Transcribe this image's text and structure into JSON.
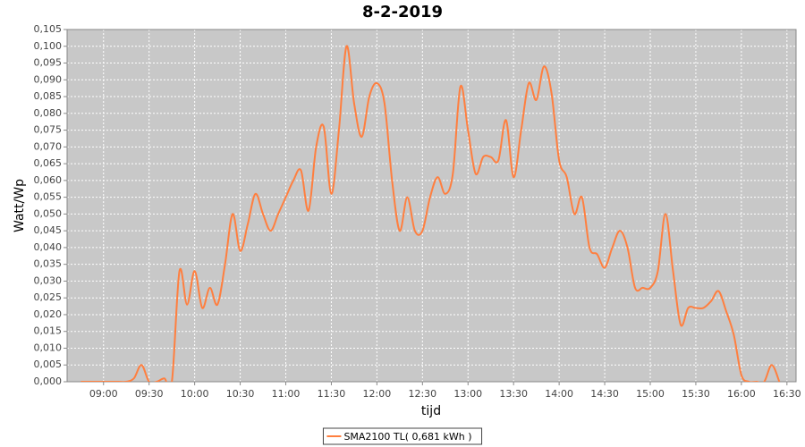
{
  "chart_data": {
    "type": "line",
    "title": "8-2-2019",
    "xlabel": "tijd",
    "ylabel": "Watt/Wp",
    "x": [
      "08:45",
      "08:50",
      "08:55",
      "09:00",
      "09:05",
      "09:10",
      "09:15",
      "09:20",
      "09:25",
      "09:30",
      "09:35",
      "09:40",
      "09:45",
      "09:50",
      "09:55",
      "10:00",
      "10:05",
      "10:10",
      "10:15",
      "10:20",
      "10:25",
      "10:30",
      "10:35",
      "10:40",
      "10:45",
      "10:50",
      "10:55",
      "11:00",
      "11:05",
      "11:10",
      "11:15",
      "11:20",
      "11:25",
      "11:30",
      "11:35",
      "11:40",
      "11:45",
      "11:50",
      "11:55",
      "12:00",
      "12:05",
      "12:10",
      "12:15",
      "12:20",
      "12:25",
      "12:30",
      "12:35",
      "12:40",
      "12:45",
      "12:50",
      "12:55",
      "13:00",
      "13:05",
      "13:10",
      "13:15",
      "13:20",
      "13:25",
      "13:30",
      "13:35",
      "13:40",
      "13:45",
      "13:50",
      "13:55",
      "14:00",
      "14:05",
      "14:10",
      "14:15",
      "14:20",
      "14:25",
      "14:30",
      "14:35",
      "14:40",
      "14:45",
      "14:50",
      "14:55",
      "15:00",
      "15:05",
      "15:10",
      "15:15",
      "15:20",
      "15:25",
      "15:30",
      "15:35",
      "15:40",
      "15:45",
      "15:50",
      "15:55",
      "16:00",
      "16:05",
      "16:10",
      "16:15",
      "16:20",
      "16:25"
    ],
    "series": [
      {
        "name": "SMA2100 TL( 0,681 kWh )",
        "color": "#ff7f3f",
        "values": [
          0,
          0,
          0,
          0,
          0,
          0,
          0,
          0.001,
          0.005,
          0,
          0,
          0.001,
          0,
          0.033,
          0.023,
          0.033,
          0.022,
          0.028,
          0.023,
          0.035,
          0.05,
          0.039,
          0.047,
          0.056,
          0.05,
          0.045,
          0.05,
          0.055,
          0.06,
          0.063,
          0.051,
          0.07,
          0.076,
          0.056,
          0.075,
          0.1,
          0.083,
          0.073,
          0.085,
          0.089,
          0.083,
          0.06,
          0.045,
          0.055,
          0.045,
          0.045,
          0.055,
          0.061,
          0.056,
          0.062,
          0.088,
          0.075,
          0.062,
          0.067,
          0.067,
          0.066,
          0.078,
          0.061,
          0.075,
          0.089,
          0.084,
          0.094,
          0.086,
          0.066,
          0.061,
          0.05,
          0.055,
          0.04,
          0.038,
          0.034,
          0.04,
          0.045,
          0.04,
          0.028,
          0.028,
          0.028,
          0.033,
          0.05,
          0.033,
          0.017,
          0.022,
          0.022,
          0.022,
          0.024,
          0.027,
          0.021,
          0.014,
          0.002,
          0,
          0,
          0,
          0.005,
          0
        ]
      }
    ],
    "xlim": [
      "08:36",
      "16:36"
    ],
    "xticks": [
      "09:00",
      "09:30",
      "10:00",
      "10:30",
      "11:00",
      "11:30",
      "12:00",
      "12:30",
      "13:00",
      "13:30",
      "14:00",
      "14:30",
      "15:00",
      "15:30",
      "16:00",
      "16:30"
    ],
    "ylim": [
      0,
      0.105
    ],
    "yticks": [
      {
        "value": 0,
        "label": "0,000"
      },
      {
        "value": 0.005,
        "label": "0,005"
      },
      {
        "value": 0.01,
        "label": "0,010"
      },
      {
        "value": 0.015,
        "label": "0,015"
      },
      {
        "value": 0.02,
        "label": "0,020"
      },
      {
        "value": 0.025,
        "label": "0,025"
      },
      {
        "value": 0.03,
        "label": "0,030"
      },
      {
        "value": 0.035,
        "label": "0,035"
      },
      {
        "value": 0.04,
        "label": "0,040"
      },
      {
        "value": 0.045,
        "label": "0,045"
      },
      {
        "value": 0.05,
        "label": "0,050"
      },
      {
        "value": 0.055,
        "label": "0,055"
      },
      {
        "value": 0.06,
        "label": "0,060"
      },
      {
        "value": 0.065,
        "label": "0,065"
      },
      {
        "value": 0.07,
        "label": "0,070"
      },
      {
        "value": 0.075,
        "label": "0,075"
      },
      {
        "value": 0.08,
        "label": "0,080"
      },
      {
        "value": 0.085,
        "label": "0,085"
      },
      {
        "value": 0.09,
        "label": "0,090"
      },
      {
        "value": 0.095,
        "label": "0,095"
      },
      {
        "value": 0.1,
        "label": "0,100"
      },
      {
        "value": 0.105,
        "label": "0,105"
      }
    ],
    "grid": true,
    "legend": "bottom"
  }
}
